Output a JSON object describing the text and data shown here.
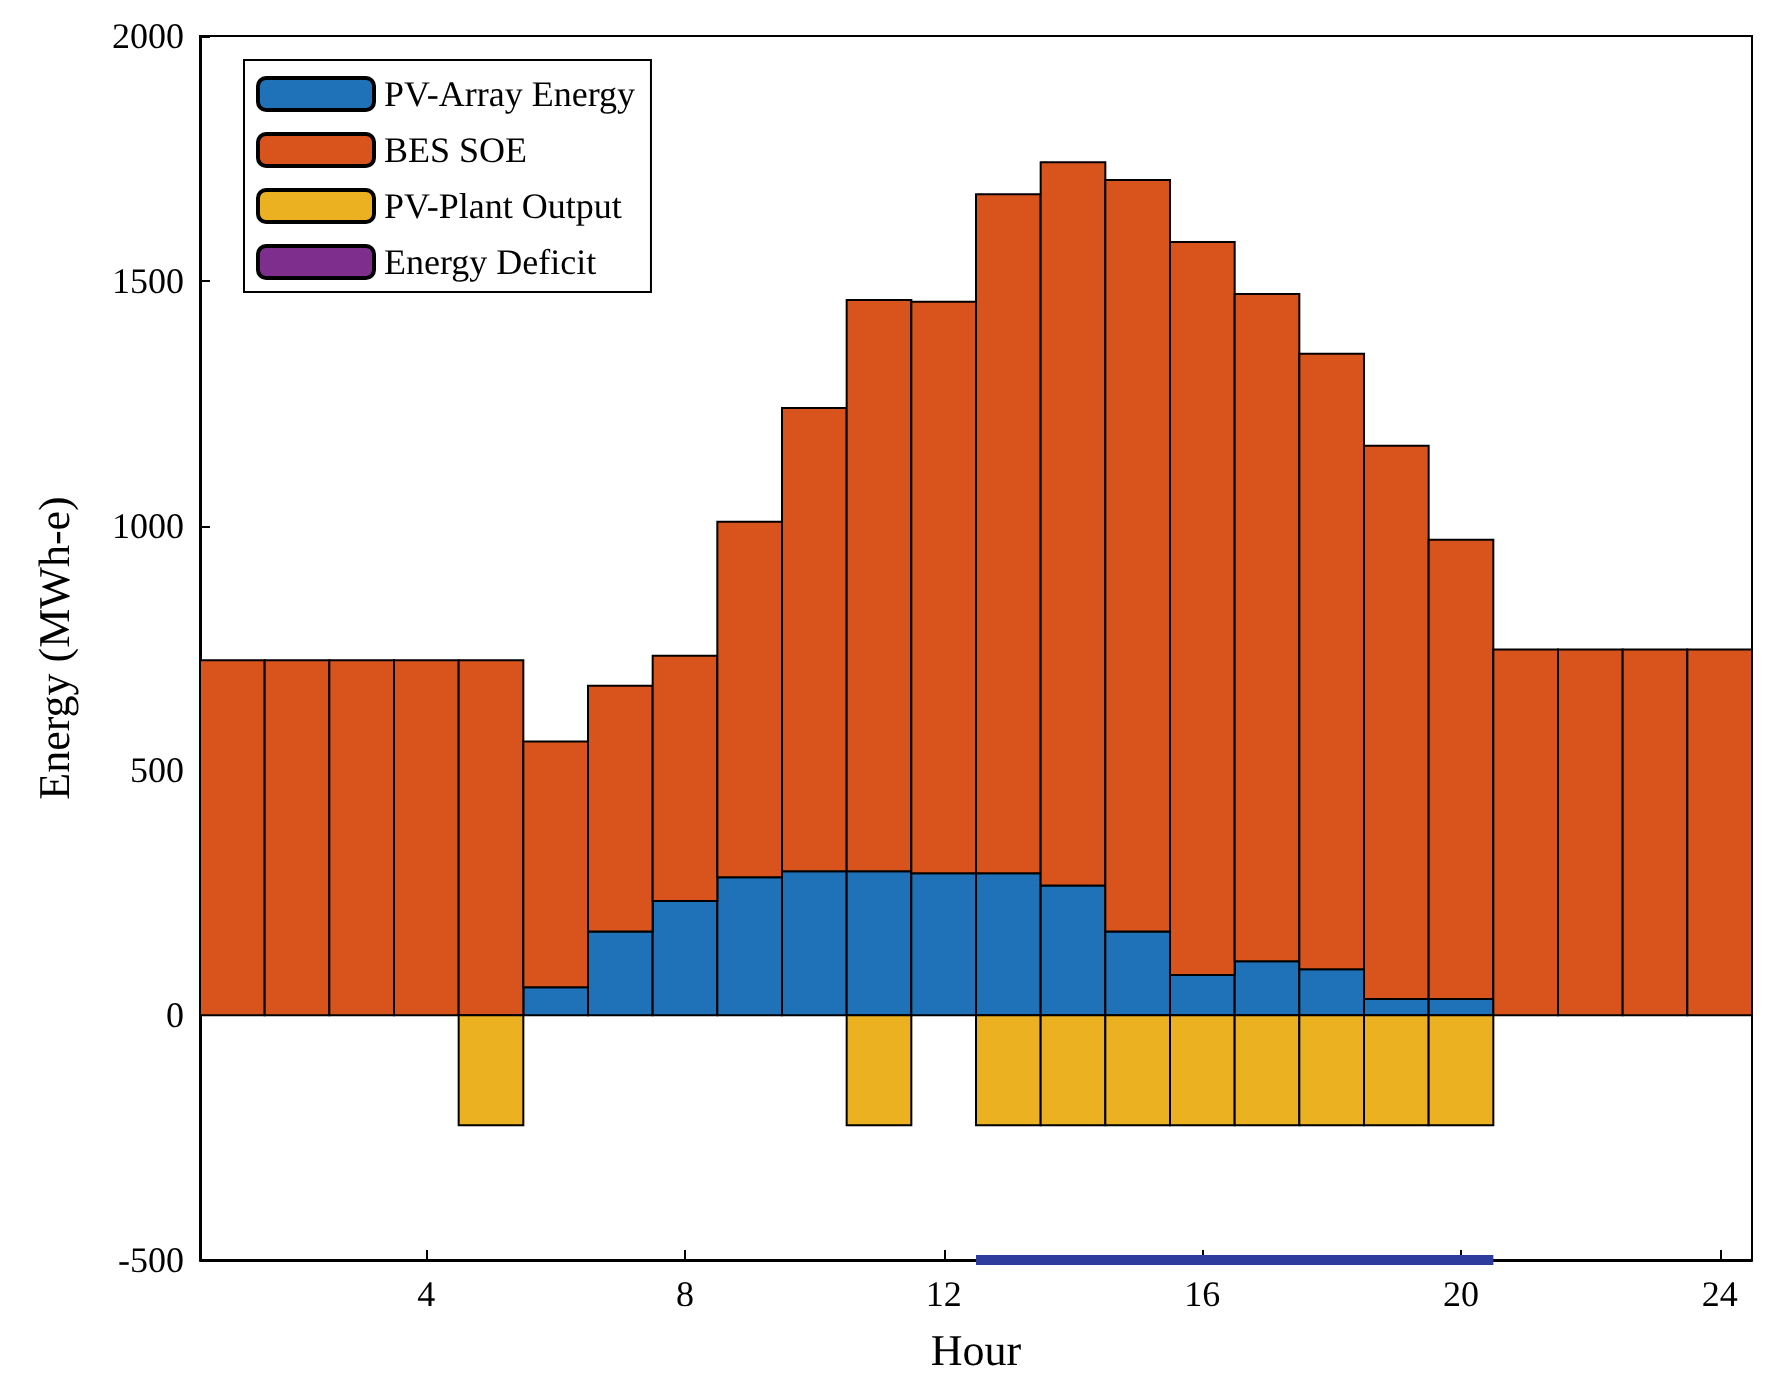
{
  "chart_data": {
    "type": "bar",
    "stacked": true,
    "xlabel": "Hour",
    "ylabel": "Energy (MWh-e)",
    "x": [
      1,
      2,
      3,
      4,
      5,
      6,
      7,
      8,
      9,
      10,
      11,
      12,
      13,
      14,
      15,
      16,
      17,
      18,
      19,
      20,
      21,
      22,
      23,
      24
    ],
    "series": [
      {
        "name": "PV-Array Energy",
        "color": "#1f72b8",
        "values": [
          0,
          0,
          0,
          0,
          0,
          57,
          171,
          233,
          282,
          294,
          294,
          290,
          290,
          265,
          171,
          82,
          110,
          94,
          33,
          33,
          0,
          0,
          0,
          0
        ]
      },
      {
        "name": "BES SOE",
        "color": "#d9541c",
        "values": [
          725,
          725,
          725,
          725,
          725,
          502,
          502,
          501,
          726,
          946,
          1167,
          1167,
          1387,
          1477,
          1535,
          1497,
          1363,
          1257,
          1130,
          938,
          747,
          747,
          747,
          747
        ]
      },
      {
        "name": "PV-Plant Output",
        "color": "#ecb121",
        "values": [
          0,
          0,
          0,
          0,
          -225,
          0,
          0,
          0,
          0,
          0,
          -225,
          0,
          -225,
          -225,
          -225,
          -225,
          -225,
          -225,
          -225,
          -225,
          0,
          0,
          0,
          0
        ]
      },
      {
        "name": "Energy Deficit",
        "color": "#7e2f8e",
        "values": [
          0,
          0,
          0,
          0,
          0,
          0,
          0,
          0,
          0,
          0,
          0,
          0,
          0,
          0,
          0,
          0,
          0,
          0,
          0,
          0,
          0,
          0,
          0,
          0
        ]
      },
      {
        "type": "line",
        "color": "#2e3c9e",
        "x": [
          12.5,
          20.5
        ],
        "values": [
          -500,
          -500
        ]
      }
    ],
    "xlim": [
      0.5,
      24.5
    ],
    "xticks": [
      4,
      8,
      12,
      16,
      20,
      24
    ],
    "ylim": [
      -500,
      2000
    ],
    "yticks": [
      -500,
      0,
      500,
      1000,
      1500,
      2000
    ],
    "grid": false,
    "legend": "top left"
  }
}
